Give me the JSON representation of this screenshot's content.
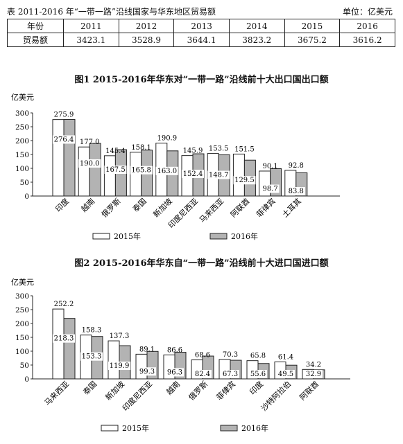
{
  "table": {
    "title": "表 2011-2016 年“一带一路”沿线国家与华东地区贸易额",
    "unit": "单位：亿美元",
    "row_labels": [
      "年份",
      "贸易额"
    ],
    "years": [
      "2011",
      "2012",
      "2013",
      "2014",
      "2015",
      "2016"
    ],
    "values": [
      "3423.1",
      "3528.9",
      "3644.1",
      "3823.2",
      "3675.2",
      "3616.2"
    ]
  },
  "chart_data": [
    {
      "type": "bar",
      "title": "图1  2015-2016年华东对“一带一路”沿线前十大出口国出口额",
      "ylabel": "亿美元",
      "ylim": [
        0,
        300
      ],
      "yticks": [
        "0",
        "50",
        "100",
        "150",
        "200",
        "250",
        "300"
      ],
      "categories": [
        "印度",
        "越南",
        "俄罗斯",
        "泰国",
        "新加坡",
        "印度尼西亚",
        "马来西亚",
        "阿联酋",
        "菲律宾",
        "土耳其"
      ],
      "series": [
        {
          "name": "2015年",
          "values": [
            275.9,
            177.0,
            145.4,
            158.1,
            190.9,
            145.9,
            153.5,
            151.5,
            90.1,
            92.8
          ],
          "labels": [
            "275.9",
            "177.0",
            "145.4",
            "158.1",
            "190.9",
            "145.9",
            "153.5",
            "151.5",
            "90.1",
            "92.8"
          ]
        },
        {
          "name": "2016年",
          "values": [
            276.4,
            190.0,
            167.5,
            165.8,
            163.0,
            152.4,
            148.7,
            129.5,
            98.7,
            83.8
          ],
          "labels": [
            "276.4",
            "190.0",
            "167.5",
            "165.8",
            "163.0",
            "152.4",
            "148.7",
            "129.5",
            "98.7",
            "83.8"
          ]
        }
      ],
      "colors": {
        "2015年": "#ffffff",
        "2016年": "#b3b3b3"
      },
      "legend_placement": "bottom",
      "grid": false
    },
    {
      "type": "bar",
      "title": "图2  2015-2016年华东自“一带一路”沿线前十大进口国进口额",
      "ylabel": "亿美元",
      "ylim": [
        0,
        300
      ],
      "yticks": [
        "0",
        "50",
        "100",
        "150",
        "200",
        "250",
        "300"
      ],
      "categories": [
        "马来西亚",
        "泰国",
        "新加坡",
        "印度尼西亚",
        "越南",
        "俄罗斯",
        "菲律宾",
        "印度",
        "沙特阿拉伯",
        "阿联酋"
      ],
      "series": [
        {
          "name": "2015年",
          "values": [
            252.2,
            158.3,
            137.3,
            89.1,
            86.6,
            68.6,
            70.3,
            65.8,
            61.4,
            34.2
          ],
          "labels": [
            "252.2",
            "158.3",
            "137.3",
            "89.1",
            "86.6",
            "68.6",
            "70.3",
            "65.8",
            "61.4",
            "34.2"
          ]
        },
        {
          "name": "2016年",
          "values": [
            218.3,
            153.3,
            119.9,
            99.3,
            96.3,
            82.4,
            67.3,
            55.6,
            49.5,
            32.9
          ],
          "labels": [
            "218.3",
            "153.3",
            "119.9",
            "99.3",
            "96.3",
            "82.4",
            "67.3",
            "55.6",
            "49.5",
            "32.9"
          ]
        }
      ],
      "colors": {
        "2015年": "#ffffff",
        "2016年": "#b3b3b3"
      },
      "legend_placement": "bottom",
      "grid": false
    }
  ]
}
